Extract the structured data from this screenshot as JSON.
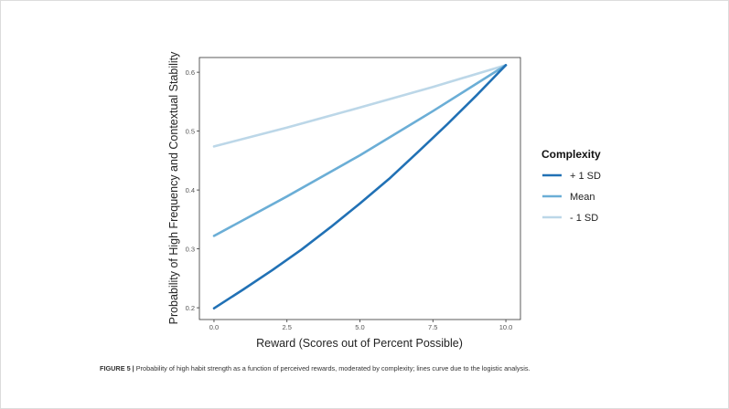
{
  "chart_data": {
    "type": "line",
    "title": "",
    "xlabel": "Reward (Scores out of Percent Possible)",
    "ylabel": "Probability of High Frequency and Contextual Stability",
    "xlim": [
      -0.5,
      10.5
    ],
    "ylim": [
      0.18,
      0.625
    ],
    "xticks": [
      0,
      2.5,
      5,
      7.5,
      10
    ],
    "xtick_labels": [
      "0.0",
      "2.5",
      "5.0",
      "7.5",
      "10.0"
    ],
    "yticks": [
      0.2,
      0.3,
      0.4,
      0.5,
      0.6
    ],
    "ytick_labels": [
      "0.2",
      "0.3",
      "0.4",
      "0.5",
      "0.6"
    ],
    "grid": false,
    "legend": {
      "title": "Complexity",
      "position": "right"
    },
    "series": [
      {
        "name": "+ 1 SD",
        "color": "#2171b5",
        "x": [
          0,
          1,
          2,
          3,
          4,
          5,
          6,
          7,
          8,
          9,
          10
        ],
        "y": [
          0.199,
          0.231,
          0.264,
          0.299,
          0.337,
          0.377,
          0.419,
          0.465,
          0.512,
          0.561,
          0.612
        ]
      },
      {
        "name": "Mean",
        "color": "#6baed6",
        "x": [
          0,
          2.5,
          5,
          7.5,
          10
        ],
        "y": [
          0.322,
          0.389,
          0.459,
          0.534,
          0.612
        ]
      },
      {
        "name": "- 1 SD",
        "color": "#bcd7e8",
        "x": [
          0,
          2.5,
          5,
          7.5,
          10
        ],
        "y": [
          0.474,
          0.506,
          0.54,
          0.575,
          0.612
        ]
      }
    ]
  },
  "caption": {
    "label": "FIGURE 5 |",
    "text": " Probability of high habit strength as a function of perceived rewards, moderated by complexity; lines curve due to the logistic analysis."
  }
}
